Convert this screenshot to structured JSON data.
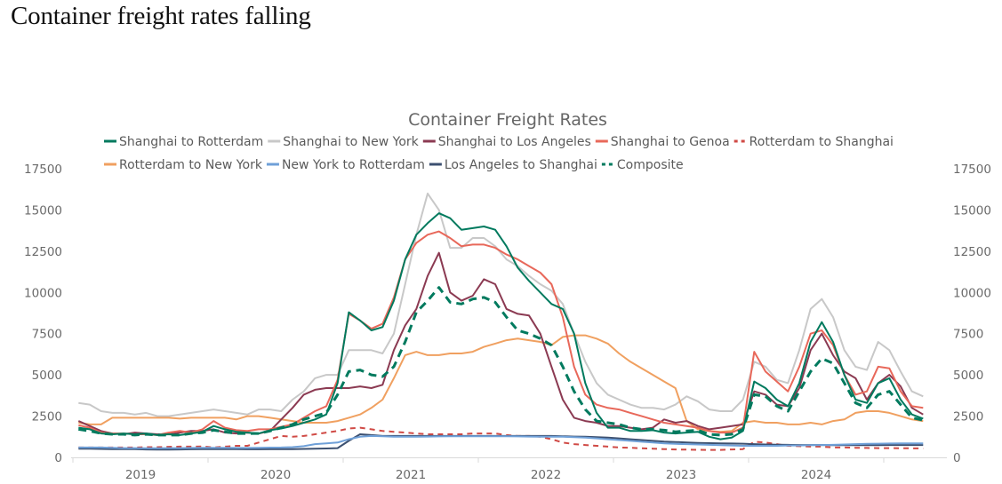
{
  "page": {
    "title": "Container freight rates falling"
  },
  "chart_data": {
    "type": "line",
    "title": "Container Freight Rates",
    "xlabel": "",
    "ylabel": "",
    "ylim": [
      0,
      17500
    ],
    "yticks": [
      0,
      2500,
      5000,
      7500,
      10000,
      12500,
      15000,
      17500
    ],
    "secondary_yticks": [
      0,
      2500,
      5000,
      7500,
      10000,
      12500,
      15000,
      17500
    ],
    "xtick_labels": [
      "2019",
      "2020",
      "2021",
      "2022",
      "2023",
      "2024"
    ],
    "grid": false,
    "legend_position": "top",
    "x": [
      "2019-01",
      "2019-02",
      "2019-03",
      "2019-04",
      "2019-05",
      "2019-06",
      "2019-07",
      "2019-08",
      "2019-09",
      "2019-10",
      "2019-11",
      "2019-12",
      "2020-01",
      "2020-02",
      "2020-03",
      "2020-04",
      "2020-05",
      "2020-06",
      "2020-07",
      "2020-08",
      "2020-09",
      "2020-10",
      "2020-11",
      "2020-12",
      "2021-01",
      "2021-02",
      "2021-03",
      "2021-04",
      "2021-05",
      "2021-06",
      "2021-07",
      "2021-08",
      "2021-09",
      "2021-10",
      "2021-11",
      "2021-12",
      "2022-01",
      "2022-02",
      "2022-03",
      "2022-04",
      "2022-05",
      "2022-06",
      "2022-07",
      "2022-08",
      "2022-09",
      "2022-10",
      "2022-11",
      "2022-12",
      "2023-01",
      "2023-02",
      "2023-03",
      "2023-04",
      "2023-05",
      "2023-06",
      "2023-07",
      "2023-08",
      "2023-09",
      "2023-10",
      "2023-11",
      "2023-12",
      "2024-01",
      "2024-02",
      "2024-03",
      "2024-04",
      "2024-05",
      "2024-06",
      "2024-07",
      "2024-08",
      "2024-09",
      "2024-10",
      "2024-11",
      "2024-12",
      "2025-01",
      "2025-02",
      "2025-03",
      "2025-04"
    ],
    "series": [
      {
        "name": "Shanghai to Rotterdam",
        "color": "#007a5e",
        "dash": false,
        "values": [
          1800,
          1700,
          1450,
          1400,
          1450,
          1400,
          1450,
          1350,
          1400,
          1350,
          1450,
          1550,
          1900,
          1700,
          1550,
          1500,
          1450,
          1650,
          1750,
          1900,
          2100,
          2300,
          2600,
          4500,
          8800,
          8300,
          7700,
          7900,
          9500,
          12000,
          13500,
          14200,
          14800,
          14500,
          13800,
          13900,
          14000,
          13800,
          12800,
          11500,
          10700,
          10000,
          9300,
          9000,
          7500,
          4500,
          2700,
          1800,
          1800,
          1600,
          1600,
          1650,
          1500,
          1450,
          1500,
          1550,
          1250,
          1100,
          1200,
          1600,
          4600,
          4200,
          3500,
          3100,
          4500,
          7000,
          8200,
          7000,
          5000,
          3500,
          3300,
          4500,
          4800,
          3500,
          2600,
          2350
        ]
      },
      {
        "name": "Shanghai to New York",
        "color": "#c8c8c8",
        "dash": false,
        "values": [
          3300,
          3200,
          2800,
          2700,
          2700,
          2600,
          2700,
          2500,
          2500,
          2600,
          2700,
          2800,
          2900,
          2800,
          2700,
          2600,
          2900,
          2900,
          2800,
          3500,
          4000,
          4800,
          5000,
          5000,
          6500,
          6500,
          6500,
          6300,
          7500,
          10500,
          13500,
          16000,
          15000,
          12700,
          12700,
          13300,
          13300,
          12800,
          12000,
          11600,
          11000,
          10500,
          10100,
          9300,
          7500,
          5800,
          4500,
          3800,
          3500,
          3200,
          3000,
          3000,
          2900,
          3200,
          3700,
          3400,
          2900,
          2800,
          2800,
          3500,
          5800,
          5500,
          4700,
          4500,
          6500,
          9000,
          9600,
          8500,
          6500,
          5500,
          5300,
          7000,
          6500,
          5200,
          4000,
          3700
        ]
      },
      {
        "name": "Shanghai to Los Angeles",
        "color": "#8b3a52",
        "dash": false,
        "values": [
          2200,
          1900,
          1600,
          1450,
          1400,
          1500,
          1450,
          1400,
          1400,
          1500,
          1600,
          1600,
          1700,
          1500,
          1450,
          1500,
          1450,
          1600,
          2300,
          3000,
          3800,
          4100,
          4200,
          4200,
          4200,
          4300,
          4200,
          4400,
          6500,
          8000,
          9000,
          11000,
          12400,
          10000,
          9500,
          9800,
          10800,
          10500,
          9000,
          8700,
          8600,
          7500,
          5500,
          3500,
          2400,
          2200,
          2100,
          1900,
          1900,
          1800,
          1700,
          1800,
          2300,
          2100,
          2200,
          1900,
          1700,
          1800,
          1900,
          2000,
          4000,
          3800,
          3200,
          3100,
          4200,
          6500,
          7500,
          6200,
          5200,
          4800,
          3500,
          4500,
          5000,
          4300,
          3000,
          2600
        ]
      },
      {
        "name": "Shanghai to Genoa",
        "color": "#e8685a",
        "dash": false,
        "values": [
          1950,
          1800,
          1500,
          1450,
          1450,
          1400,
          1400,
          1350,
          1500,
          1600,
          1500,
          1700,
          2200,
          1800,
          1650,
          1600,
          1700,
          1700,
          1850,
          2000,
          2400,
          2800,
          3100,
          4700,
          8700,
          8300,
          7800,
          8100,
          9700,
          12000,
          13000,
          13500,
          13700,
          13300,
          12800,
          12900,
          12900,
          12700,
          12300,
          12000,
          11600,
          11200,
          10500,
          8500,
          5500,
          3800,
          3200,
          3000,
          2900,
          2700,
          2500,
          2300,
          2100,
          2000,
          1900,
          1800,
          1600,
          1500,
          1500,
          1800,
          6400,
          5200,
          4600,
          4000,
          5500,
          7500,
          7700,
          6800,
          5000,
          3800,
          4000,
          5500,
          5400,
          4000,
          3100,
          3000
        ]
      },
      {
        "name": "Rotterdam to Shanghai",
        "color": "#d04a45",
        "dash": true,
        "values": [
          600,
          600,
          600,
          600,
          600,
          600,
          620,
          620,
          640,
          650,
          650,
          660,
          600,
          650,
          700,
          700,
          900,
          1100,
          1300,
          1250,
          1300,
          1400,
          1500,
          1600,
          1750,
          1800,
          1700,
          1600,
          1550,
          1500,
          1450,
          1400,
          1400,
          1400,
          1400,
          1450,
          1450,
          1450,
          1350,
          1300,
          1300,
          1250,
          1100,
          900,
          800,
          750,
          700,
          650,
          600,
          580,
          550,
          530,
          500,
          480,
          470,
          460,
          450,
          450,
          480,
          500,
          950,
          900,
          800,
          700,
          680,
          650,
          650,
          600,
          600,
          580,
          570,
          560,
          560,
          550,
          550,
          540
        ]
      },
      {
        "name": "Rotterdam to New York",
        "color": "#f0a060",
        "dash": false,
        "values": [
          2100,
          2000,
          2000,
          2400,
          2400,
          2400,
          2400,
          2400,
          2400,
          2350,
          2400,
          2400,
          2400,
          2400,
          2300,
          2500,
          2500,
          2400,
          2300,
          2200,
          2100,
          2100,
          2100,
          2200,
          2400,
          2600,
          3000,
          3500,
          4800,
          6200,
          6400,
          6200,
          6200,
          6300,
          6300,
          6400,
          6700,
          6900,
          7100,
          7200,
          7100,
          7000,
          6800,
          7300,
          7400,
          7400,
          7200,
          6900,
          6300,
          5800,
          5400,
          5000,
          4600,
          4200,
          2200,
          1700,
          1600,
          1550,
          1600,
          2100,
          2200,
          2100,
          2100,
          2000,
          2000,
          2100,
          2000,
          2200,
          2300,
          2700,
          2800,
          2800,
          2700,
          2500,
          2300,
          2200
        ]
      },
      {
        "name": "New York to Rotterdam",
        "color": "#6fa0d8",
        "dash": false,
        "values": [
          600,
          600,
          600,
          580,
          560,
          560,
          550,
          550,
          560,
          560,
          570,
          580,
          580,
          580,
          570,
          570,
          580,
          590,
          600,
          620,
          680,
          800,
          850,
          900,
          1100,
          1250,
          1300,
          1280,
          1250,
          1250,
          1250,
          1260,
          1270,
          1280,
          1280,
          1280,
          1280,
          1280,
          1280,
          1270,
          1260,
          1250,
          1250,
          1250,
          1230,
          1200,
          1150,
          1100,
          1050,
          1000,
          950,
          900,
          850,
          820,
          800,
          780,
          760,
          740,
          720,
          700,
          700,
          700,
          700,
          720,
          720,
          740,
          750,
          760,
          780,
          800,
          820,
          830,
          840,
          850,
          850,
          850
        ]
      },
      {
        "name": "Los Angeles to Shanghai",
        "color": "#3c5070",
        "dash": false,
        "values": [
          520,
          520,
          510,
          500,
          500,
          500,
          480,
          470,
          470,
          480,
          490,
          500,
          500,
          500,
          500,
          490,
          490,
          500,
          500,
          500,
          510,
          520,
          540,
          560,
          1000,
          1400,
          1350,
          1300,
          1300,
          1300,
          1300,
          1300,
          1300,
          1300,
          1300,
          1300,
          1300,
          1300,
          1300,
          1300,
          1300,
          1300,
          1300,
          1280,
          1260,
          1250,
          1220,
          1200,
          1150,
          1100,
          1050,
          1000,
          960,
          930,
          900,
          880,
          860,
          850,
          840,
          830,
          800,
          780,
          770,
          760,
          750,
          750,
          750,
          740,
          740,
          740,
          740,
          740,
          750,
          750,
          750,
          750
        ]
      },
      {
        "name": "Composite",
        "color": "#007a5e",
        "dash": true,
        "values": [
          1700,
          1600,
          1450,
          1400,
          1400,
          1350,
          1400,
          1350,
          1350,
          1350,
          1450,
          1500,
          1650,
          1550,
          1450,
          1450,
          1450,
          1600,
          1800,
          2000,
          2300,
          2500,
          2700,
          3800,
          5200,
          5300,
          5000,
          4900,
          5500,
          7000,
          8800,
          9500,
          10300,
          9400,
          9300,
          9600,
          9700,
          9400,
          8500,
          7700,
          7500,
          7200,
          6800,
          5500,
          4000,
          2900,
          2200,
          2100,
          2000,
          1800,
          1700,
          1700,
          1650,
          1550,
          1600,
          1650,
          1400,
          1350,
          1400,
          1700,
          3800,
          3700,
          3100,
          2800,
          4000,
          5200,
          6000,
          5700,
          4500,
          3300,
          3000,
          3800,
          4000,
          3200,
          2400,
          2250
        ]
      }
    ]
  }
}
